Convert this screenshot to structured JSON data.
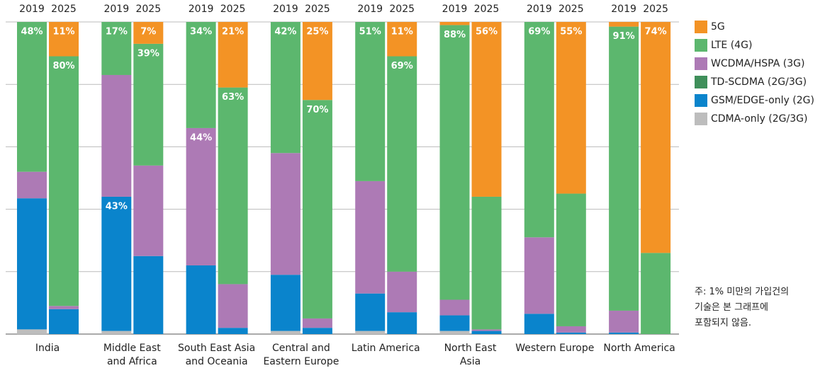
{
  "chart_data": {
    "type": "stacked_bar",
    "categories": [
      "India",
      "Middle East\nand Africa",
      "South East Asia\nand Oceania",
      "Central and\nEastern Europe",
      "Latin America",
      "North East\nAsia",
      "Western Europe",
      "North America"
    ],
    "years": [
      "2019",
      "2025"
    ],
    "ylim": [
      0,
      100
    ],
    "yticks": [
      0,
      20,
      40,
      60,
      80,
      100
    ],
    "grid": true,
    "series": [
      {
        "name": "5G",
        "color": "#f39325",
        "values": [
          [
            0,
            11
          ],
          [
            0,
            7
          ],
          [
            0,
            21
          ],
          [
            0,
            25
          ],
          [
            0,
            11
          ],
          [
            1,
            56
          ],
          [
            0,
            55
          ],
          [
            1.5,
            74
          ]
        ],
        "value_labels": [
          [
            null,
            "11%"
          ],
          [
            null,
            "7%"
          ],
          [
            null,
            "21%"
          ],
          [
            null,
            "25%"
          ],
          [
            null,
            "11%"
          ],
          [
            null,
            "56%"
          ],
          [
            null,
            "55%"
          ],
          [
            null,
            "74%"
          ]
        ]
      },
      {
        "name": "LTE (4G)",
        "color": "#5cb76e",
        "values": [
          [
            48,
            80
          ],
          [
            17,
            39
          ],
          [
            34,
            63
          ],
          [
            42,
            70
          ],
          [
            51,
            69
          ],
          [
            88,
            42.5
          ],
          [
            69,
            42.5
          ],
          [
            91,
            26
          ]
        ],
        "value_labels": [
          [
            "48%",
            "80%"
          ],
          [
            "17%",
            "39%"
          ],
          [
            "34%",
            "63%"
          ],
          [
            "42%",
            "70%"
          ],
          [
            "51%",
            "69%"
          ],
          [
            "88%",
            null
          ],
          [
            "69%",
            null
          ],
          [
            "91%",
            null
          ]
        ]
      },
      {
        "name": "WCDMA/HSPA (3G)",
        "color": "#ad7ab5",
        "values": [
          [
            8.5,
            1
          ],
          [
            39,
            29
          ],
          [
            44,
            14
          ],
          [
            39,
            3
          ],
          [
            36,
            13
          ],
          [
            5,
            0.5
          ],
          [
            24.5,
            2
          ],
          [
            7,
            0
          ]
        ],
        "value_labels": [
          [
            null,
            null
          ],
          [
            null,
            null
          ],
          [
            "44%",
            null
          ],
          [
            null,
            null
          ],
          [
            null,
            null
          ],
          [
            null,
            null
          ],
          [
            null,
            null
          ],
          [
            null,
            null
          ]
        ]
      },
      {
        "name": "TD-SCDMA (2G/3G)",
        "color": "#3f8f5a",
        "values": [
          [
            0,
            0
          ],
          [
            0,
            0
          ],
          [
            0,
            0
          ],
          [
            0,
            0
          ],
          [
            0,
            0
          ],
          [
            0,
            0
          ],
          [
            0,
            0
          ],
          [
            0,
            0
          ]
        ]
      },
      {
        "name": "GSM/EDGE-only (2G)",
        "color": "#0a84cc",
        "values": [
          [
            42,
            8
          ],
          [
            43,
            25
          ],
          [
            22,
            2
          ],
          [
            18,
            2
          ],
          [
            12,
            7
          ],
          [
            5,
            1
          ],
          [
            6.5,
            0.5
          ],
          [
            0.5,
            0
          ]
        ],
        "value_labels": [
          [
            null,
            null
          ],
          [
            "43%",
            null
          ],
          [
            null,
            null
          ],
          [
            null,
            null
          ],
          [
            null,
            null
          ],
          [
            null,
            null
          ],
          [
            null,
            null
          ],
          [
            null,
            null
          ]
        ]
      },
      {
        "name": "CDMA-only (2G/3G)",
        "color": "#bdbdbd",
        "values": [
          [
            1.5,
            0
          ],
          [
            1,
            0
          ],
          [
            0,
            0
          ],
          [
            1,
            0
          ],
          [
            1,
            0
          ],
          [
            1,
            0
          ],
          [
            0,
            0
          ],
          [
            0,
            0
          ]
        ]
      }
    ]
  },
  "note": [
    "주: 1% 미만의 가입건의",
    "기술은 본 그래프에",
    "포함되지 않음."
  ]
}
